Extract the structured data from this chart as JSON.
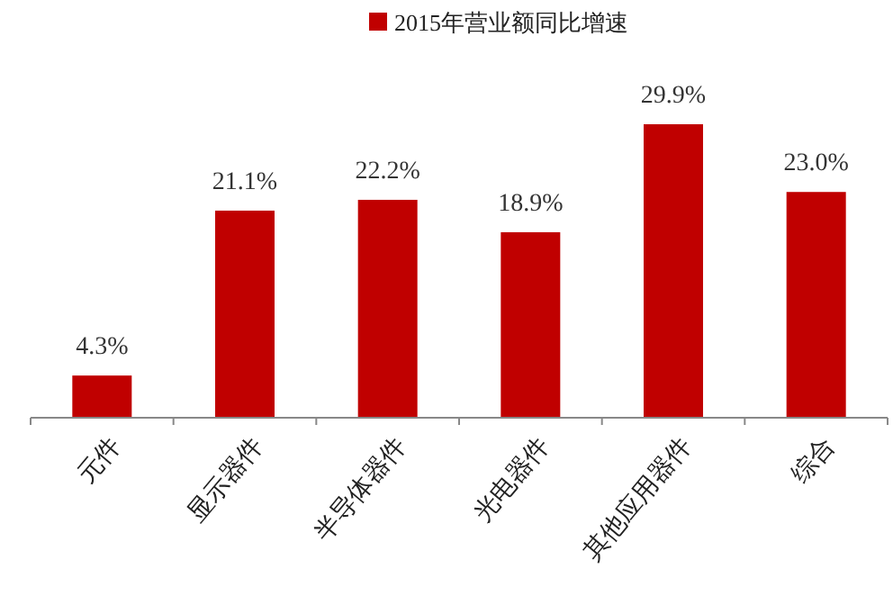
{
  "chart_data": {
    "type": "bar",
    "categories": [
      "元件",
      "显示器件",
      "半导体器件",
      "光电器件",
      "其他应用器件",
      "综合"
    ],
    "series": [
      {
        "name": "2015年营业额同比增速",
        "color": "#c00000",
        "values": [
          4.3,
          21.1,
          22.2,
          18.9,
          29.9,
          23.0
        ],
        "value_labels": [
          "4.3%",
          "21.1%",
          "22.2%",
          "18.9%",
          "29.9%",
          "23.0%"
        ]
      }
    ],
    "legend": "top"
  }
}
